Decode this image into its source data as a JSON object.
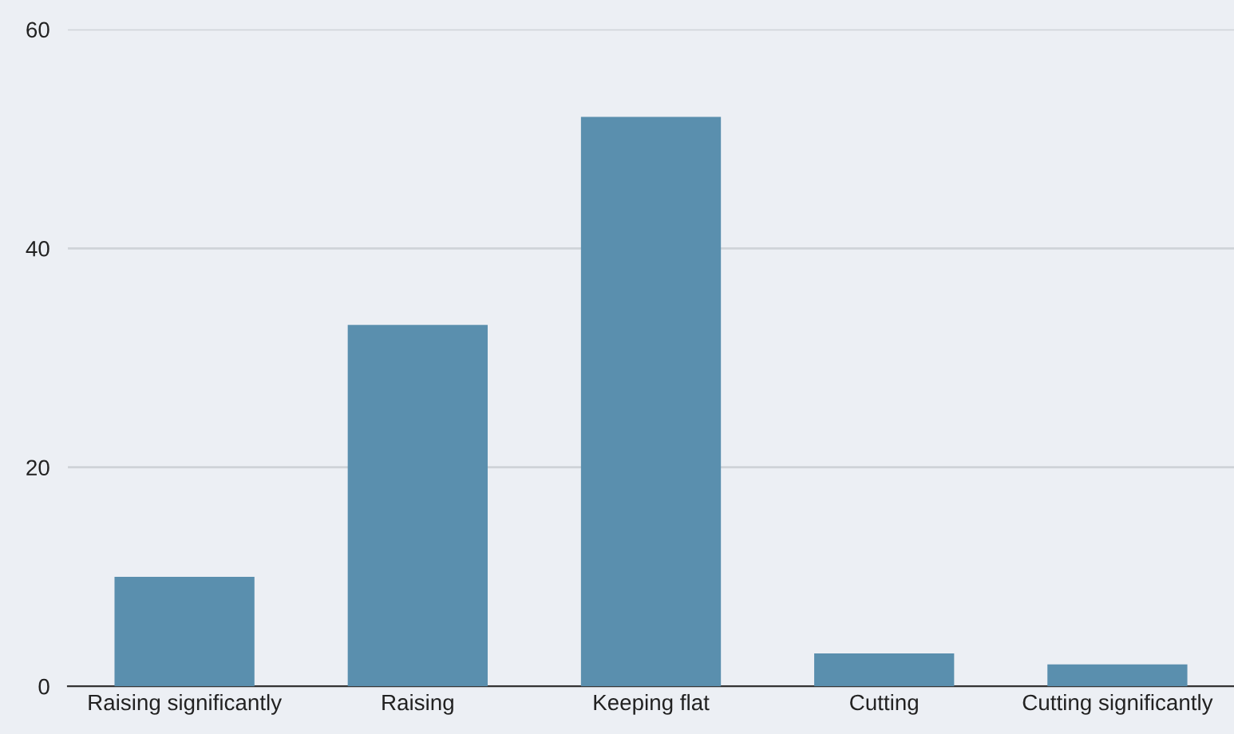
{
  "chart_data": {
    "type": "bar",
    "categories": [
      "Raising significantly",
      "Raising",
      "Keeping flat",
      "Cutting",
      "Cutting significantly"
    ],
    "values": [
      10,
      33,
      52,
      3,
      2
    ],
    "color": "#5a8fae",
    "ylim": [
      0,
      60
    ],
    "yticks": [
      0,
      20,
      40,
      60
    ],
    "grid": "y",
    "legend": false
  }
}
